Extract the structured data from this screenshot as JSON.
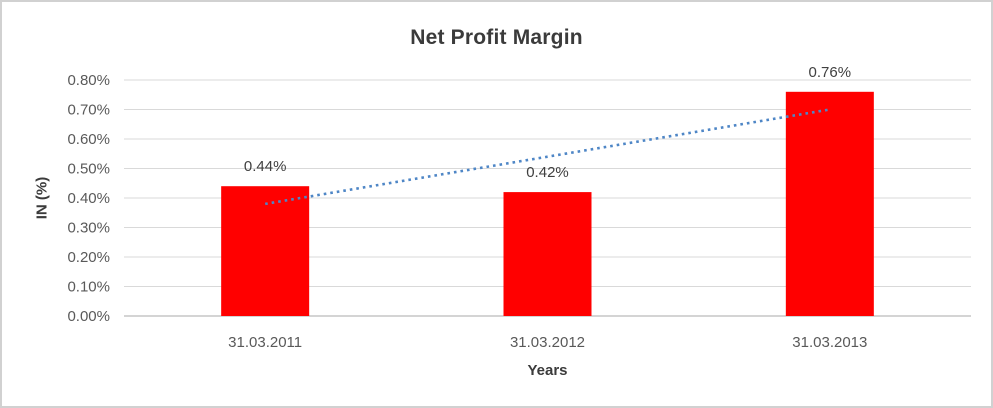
{
  "chart_data": {
    "type": "bar",
    "title": "Net Profit Margin",
    "xlabel": "Years",
    "ylabel": "IN (%)",
    "categories": [
      "31.03.2011",
      "31.03.2012",
      "31.03.2013"
    ],
    "series": [
      {
        "name": "Net Profit Margin",
        "values": [
          0.44,
          0.42,
          0.76
        ],
        "data_labels": [
          "0.44%",
          "0.42%",
          "0.76%"
        ],
        "color": "#ff0000"
      }
    ],
    "y_ticks": [
      {
        "value": 0.8,
        "label": "0.80%"
      },
      {
        "value": 0.7,
        "label": "0.70%"
      },
      {
        "value": 0.6,
        "label": "0.60%"
      },
      {
        "value": 0.5,
        "label": "0.50%"
      },
      {
        "value": 0.4,
        "label": "0.40%"
      },
      {
        "value": 0.3,
        "label": "0.30%"
      },
      {
        "value": 0.2,
        "label": "0.20%"
      },
      {
        "value": 0.1,
        "label": "0.10%"
      },
      {
        "value": 0.0,
        "label": "0.00%"
      }
    ],
    "ylim": [
      0,
      0.8
    ],
    "grid": "horizontal",
    "legend_position": "none",
    "trendline": {
      "type": "linear",
      "style": "dotted",
      "color": "#4e86c6",
      "start_value": 0.38,
      "end_value": 0.7
    },
    "colors": {
      "bar": "#ff0000",
      "gridline": "#d9d9d9",
      "axis_line": "#a8a8a8",
      "tick_text": "#595959",
      "data_label_text": "#404040",
      "title_text": "#3b3b3b",
      "frame_border": "#d1d1d1"
    }
  }
}
